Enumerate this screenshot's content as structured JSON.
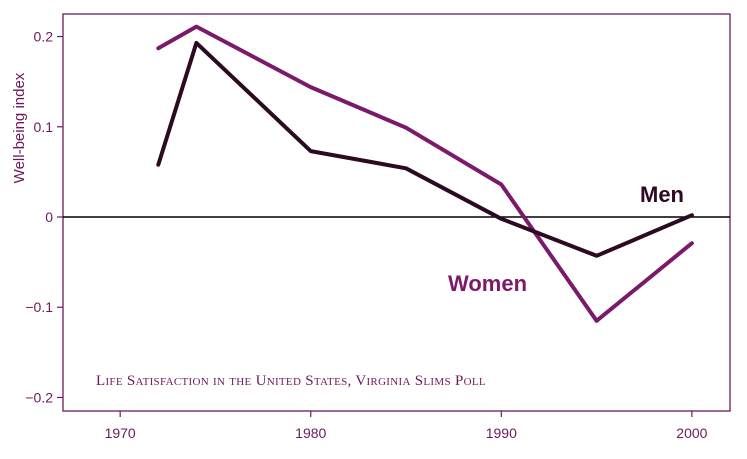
{
  "chart_data": {
    "type": "line",
    "title": "Life Satisfaction in the United States, Virginia Slims Poll",
    "xlabel": "",
    "ylabel": "Well-being index",
    "xlim": [
      1967,
      2002
    ],
    "ylim": [
      -0.215,
      0.225
    ],
    "x_ticks": [
      1970,
      1980,
      1990,
      2000
    ],
    "x_tick_labels": [
      "1970",
      "1980",
      "1990",
      "2000"
    ],
    "y_ticks": [
      0.2,
      0.1,
      0,
      -0.1,
      -0.2
    ],
    "y_tick_labels": [
      "0.2",
      "0.1",
      "0",
      "−0.1",
      "−0.2"
    ],
    "reference_line": 0,
    "series": [
      {
        "name": "Men",
        "color": "#2b0a22",
        "x": [
          1972,
          1974,
          1980,
          1985,
          1990,
          1995,
          2000
        ],
        "values": [
          0.058,
          0.193,
          0.073,
          0.054,
          -0.002,
          -0.043,
          0.002
        ]
      },
      {
        "name": "Women",
        "color": "#7b1a6b",
        "x": [
          1972,
          1974,
          1980,
          1985,
          1990,
          1995,
          2000
        ],
        "values": [
          0.187,
          0.211,
          0.144,
          0.099,
          0.036,
          -0.115,
          -0.029
        ]
      }
    ]
  }
}
